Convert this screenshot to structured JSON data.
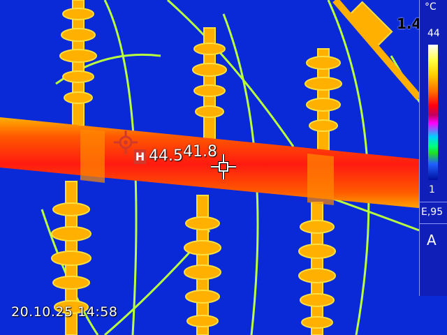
{
  "overlay": {
    "max_marker_label": "H",
    "max_value": "44.5",
    "spot_value": "41.8",
    "datetime": "20.10.25 14:58",
    "left_readout": "1.4"
  },
  "palette": {
    "unit": "°C",
    "max": "44",
    "min": "1",
    "emissivity": "E,95",
    "mode": "A"
  },
  "colors": {
    "background": "#0a2ad8",
    "hot_pipe": "#ff2a10",
    "insulator": "#ffb000",
    "wire": "#b8ff40",
    "crosshair_max": "#d13a2a",
    "crosshair_spot": "#ffffff"
  }
}
